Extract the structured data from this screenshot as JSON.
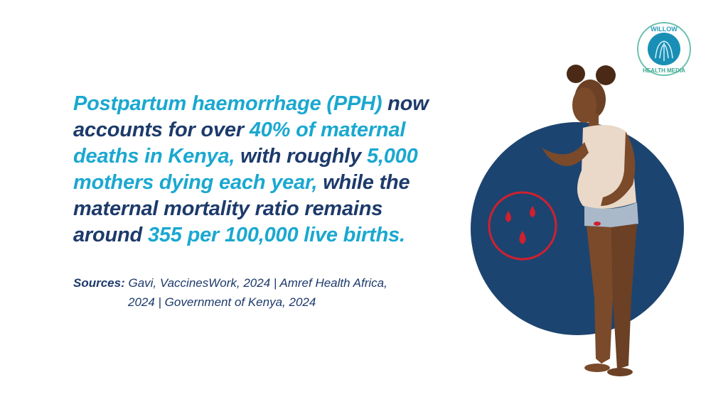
{
  "logo": {
    "top_text": "WILLOW",
    "bottom_text": "HEALTH MEDIA"
  },
  "headline": {
    "lines": [
      [
        {
          "t": "Postpartum haemorrhage (PPH)",
          "h": true
        },
        {
          "t": " now",
          "h": false
        }
      ],
      [
        {
          "t": "accounts for over ",
          "h": false
        },
        {
          "t": "40% of maternal",
          "h": true
        }
      ],
      [
        {
          "t": "deaths in Kenya,",
          "h": true
        },
        {
          "t": " with roughly ",
          "h": false
        },
        {
          "t": "5,000",
          "h": true
        }
      ],
      [
        {
          "t": "mothers dying each year,",
          "h": true
        },
        {
          "t": " while the",
          "h": false
        }
      ],
      [
        {
          "t": "maternal mortality ratio remains",
          "h": false
        }
      ],
      [
        {
          "t": "around ",
          "h": false
        },
        {
          "t": "355 per 100,000 live births.",
          "h": true
        }
      ]
    ]
  },
  "sources": {
    "label": "Sources:",
    "line1": " Gavi, VaccinesWork, 2024 | Amref Health Africa,",
    "line2": "2024 | Government of Kenya, 2024"
  },
  "colors": {
    "highlight": "#1aa8d0",
    "text": "#1d3a6b",
    "circle": "#1c4470",
    "blood": "#d0202f",
    "skin": "#7a4a2a"
  },
  "icons": [
    "blood-drops-icon",
    "willow-tree-logo"
  ]
}
